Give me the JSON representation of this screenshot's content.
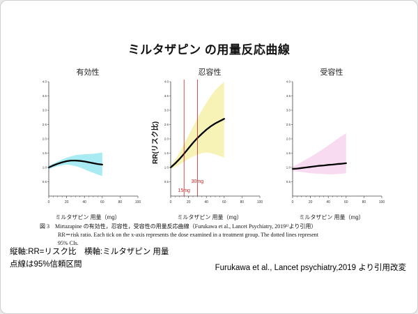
{
  "slide": {
    "title": "ミルタザピン の用量反応曲線",
    "caption_line1": "図 3　Mirtazapine の有効性，忍容性，受容性の用量反応曲線（Furukawa et al., Lancet Psychiatry, 2019¹⁾より引用）",
    "caption_line2": "RR＝risk ratio. Each tick on the x-axis represents the dose examined in a treatment group. The dotted lines represent",
    "caption_line3": "95% CIs.",
    "note_line1": "縦軸:RR=リスク比　横軸:ミルタザピン 用量",
    "note_line2": "点線は95%信頼区間",
    "source": "Furukawa et al.,  Lancet psychiatry,2019 より引用改変"
  },
  "chart_data": {
    "type": "line",
    "title": "ミルタザピン の用量反応曲線",
    "x_label": "ミルタザピン 用量（mg）",
    "y_label": "RR(リスク比)",
    "xlim": [
      0,
      100
    ],
    "ylim": [
      0,
      4
    ],
    "x_ticks": [
      0,
      20,
      40,
      60,
      80,
      100
    ],
    "y_ticks": [
      0.5,
      1.0,
      1.5,
      2.0,
      2.5,
      3.0,
      3.5,
      4.0
    ],
    "x": [
      0,
      5,
      10,
      15,
      20,
      25,
      30,
      35,
      40,
      45,
      50,
      55,
      60
    ],
    "panels": [
      {
        "title": "有効性",
        "band_color": "#9fe9f2",
        "mean": [
          1.0,
          1.07,
          1.13,
          1.18,
          1.22,
          1.24,
          1.24,
          1.23,
          1.21,
          1.18,
          1.15,
          1.12,
          1.1
        ],
        "upper": [
          1.06,
          1.13,
          1.21,
          1.28,
          1.34,
          1.39,
          1.43,
          1.45,
          1.46,
          1.47,
          1.48,
          1.5,
          1.52
        ],
        "lower": [
          0.94,
          1.0,
          1.05,
          1.08,
          1.1,
          1.08,
          1.05,
          1.0,
          0.94,
          0.87,
          0.81,
          0.75,
          0.7
        ]
      },
      {
        "title": "忍容性",
        "band_color": "#f6f2ae",
        "mean": [
          1.0,
          1.14,
          1.3,
          1.48,
          1.67,
          1.86,
          2.03,
          2.18,
          2.32,
          2.44,
          2.54,
          2.62,
          2.7
        ],
        "upper": [
          1.06,
          1.26,
          1.52,
          1.82,
          2.12,
          2.42,
          2.72,
          3.0,
          3.26,
          3.5,
          3.7,
          3.86,
          4.0
        ],
        "lower": [
          0.94,
          1.02,
          1.1,
          1.2,
          1.3,
          1.38,
          1.45,
          1.5,
          1.52,
          1.5,
          1.46,
          1.4,
          1.35
        ],
        "ref_color": "#cc2222",
        "ref_lines": [
          {
            "x": 15,
            "label": "15mg"
          },
          {
            "x": 30,
            "label": "30mg"
          }
        ]
      },
      {
        "title": "受容性",
        "band_color": "#f7d7ee",
        "mean": [
          0.95,
          0.96,
          0.98,
          1.0,
          1.02,
          1.04,
          1.06,
          1.07,
          1.09,
          1.1,
          1.12,
          1.13,
          1.15
        ],
        "upper": [
          1.02,
          1.1,
          1.19,
          1.28,
          1.37,
          1.46,
          1.56,
          1.66,
          1.77,
          1.88,
          1.99,
          2.1,
          2.2
        ],
        "lower": [
          0.88,
          0.86,
          0.84,
          0.82,
          0.8,
          0.79,
          0.78,
          0.77,
          0.76,
          0.76,
          0.77,
          0.78,
          0.8
        ]
      }
    ]
  }
}
